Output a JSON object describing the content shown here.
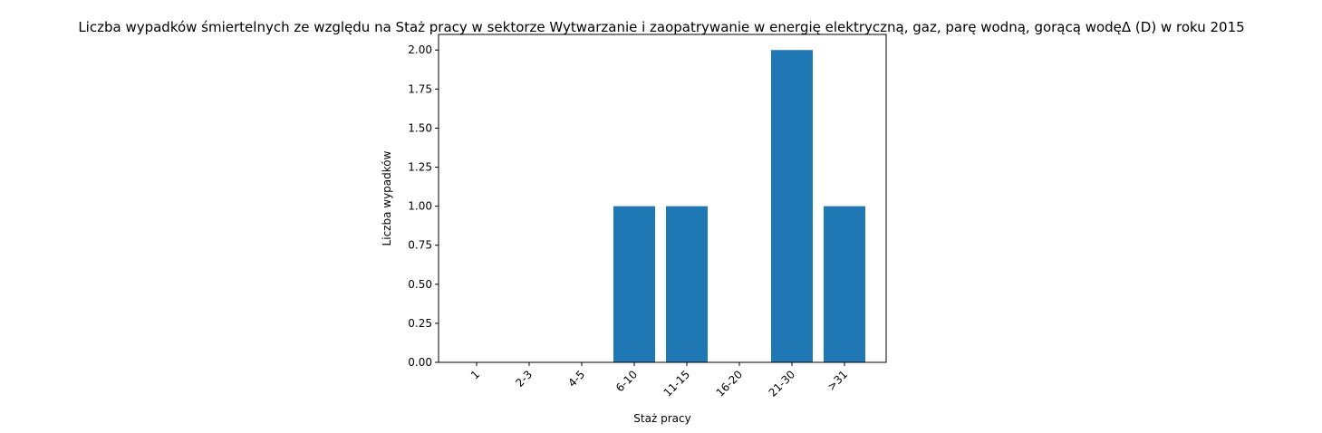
{
  "chart_data": {
    "type": "bar",
    "title": "Liczba wypadków śmiertelnych ze względu na Staż pracy w sektorze Wytwarzanie i zaopatrywanie w energię elektryczną, gaz, parę wodną, gorącą wodęΔ  (D) w roku 2015",
    "xlabel": "Staż pracy",
    "ylabel": "Liczba wypadków",
    "categories": [
      "1",
      "2-3",
      "4-5",
      "6-10",
      "11-15",
      "16-20",
      "21-30",
      ">31"
    ],
    "values": [
      0,
      0,
      0,
      1,
      1,
      0,
      2,
      1
    ],
    "ylim": [
      0,
      2.1
    ],
    "yticks": [
      "0.00",
      "0.25",
      "0.50",
      "0.75",
      "1.00",
      "1.25",
      "1.50",
      "1.75",
      "2.00"
    ],
    "bar_color": "#1f77b4",
    "grid": false
  }
}
